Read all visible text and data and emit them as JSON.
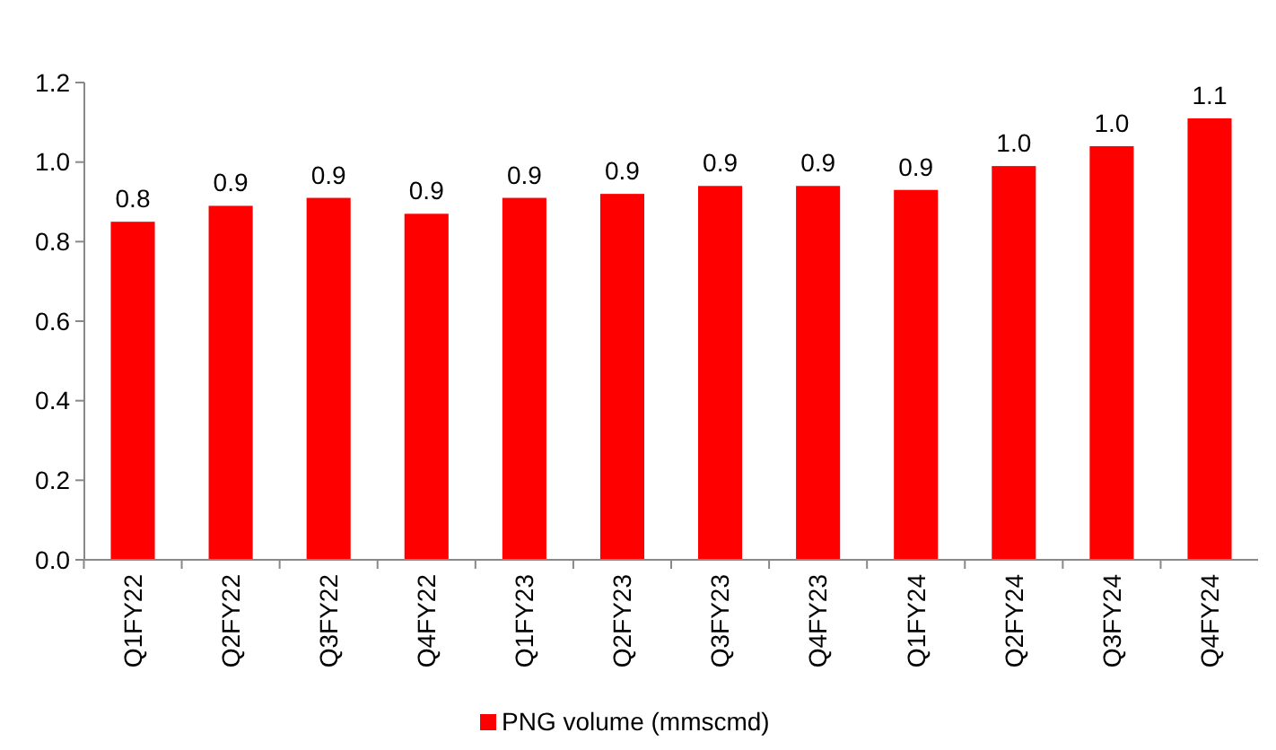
{
  "chart_data": {
    "type": "bar",
    "categories": [
      "Q1FY22",
      "Q2FY22",
      "Q3FY22",
      "Q4FY22",
      "Q1FY23",
      "Q2FY23",
      "Q3FY23",
      "Q4FY23",
      "Q1FY24",
      "Q2FY24",
      "Q3FY24",
      "Q4FY24"
    ],
    "series": [
      {
        "name": "PNG volume (mmscmd)",
        "color": "#ff0000",
        "values": [
          0.85,
          0.89,
          0.91,
          0.87,
          0.91,
          0.92,
          0.94,
          0.94,
          0.93,
          0.99,
          1.04,
          1.11
        ],
        "value_labels": [
          "0.8",
          "0.9",
          "0.9",
          "0.9",
          "0.9",
          "0.9",
          "0.9",
          "0.9",
          "0.9",
          "1.0",
          "1.0",
          "1.1"
        ]
      }
    ],
    "ylim": [
      0,
      1.2
    ],
    "yticks": [
      "0.0",
      "0.2",
      "0.4",
      "0.6",
      "0.8",
      "1.0",
      "1.2"
    ],
    "grid": false,
    "legend": "bottom"
  }
}
